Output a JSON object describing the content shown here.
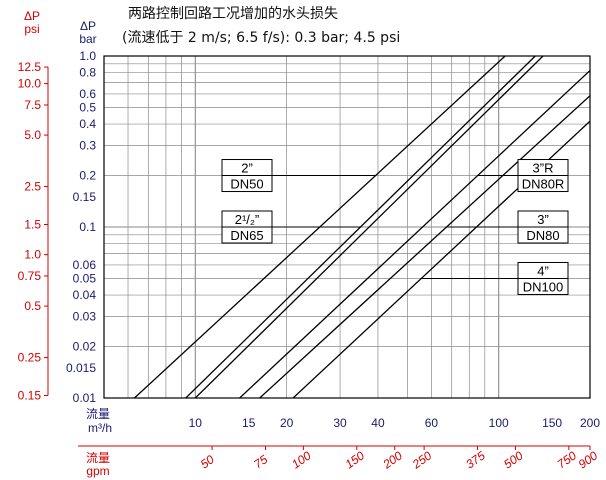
{
  "chart_data": {
    "type": "line",
    "title": "两路控制回路工况增加的水头损失",
    "subtitle": "(流速低于 2 m/s; 6.5 f/s): 0.3 bar; 4.5 psi",
    "x_scale": "log",
    "y_scale": "log",
    "grid": true,
    "xlim": [
      5,
      200
    ],
    "ylim": [
      0.01,
      1.0
    ],
    "x_axis": {
      "label_line1": "流量",
      "label_line2": "m³/h",
      "ticks": [
        10,
        15,
        20,
        30,
        40,
        60,
        100,
        150,
        200
      ],
      "tick_labels": [
        "10",
        "15",
        "20",
        "30",
        "40",
        "60",
        "100",
        "150",
        "200"
      ]
    },
    "y_axis": {
      "unit_symbol": "ΔP",
      "unit": "bar",
      "ticks": [
        0.01,
        0.015,
        0.02,
        0.03,
        0.04,
        0.05,
        0.06,
        0.1,
        0.15,
        0.2,
        0.3,
        0.4,
        0.5,
        0.6,
        0.8,
        1.0
      ],
      "tick_labels": [
        "0.01",
        "0.015",
        "0.02",
        "0.03",
        "0.04",
        "0.05",
        "0.06",
        "0.1",
        "0.15",
        "0.2",
        "0.3",
        "0.4",
        "0.5",
        "0.6",
        "0.8",
        "1.0"
      ]
    },
    "secondary_y_axis": {
      "unit_symbol": "ΔP",
      "unit": "psi",
      "color": "#d40000",
      "ticks": [
        0.15,
        0.25,
        0.5,
        0.75,
        1.0,
        1.5,
        2.5,
        5.0,
        7.5,
        10.0,
        12.5
      ],
      "tick_labels": [
        "0.15",
        "0.25",
        "0.5",
        "0.75",
        "1.0",
        "1.5",
        "2.5",
        "5.0",
        "7.5",
        "10.0",
        "12.5"
      ]
    },
    "secondary_x_axis": {
      "label_line1": "流量",
      "label_line2": "gpm",
      "color": "#d40000",
      "ticks": [
        50,
        75,
        100,
        150,
        200,
        250,
        375,
        500,
        750,
        900
      ],
      "tick_labels": [
        "50",
        "75",
        "100",
        "150",
        "200",
        "250",
        "375",
        "500",
        "750",
        "900"
      ]
    },
    "series": [
      {
        "label_top": "2”",
        "label_bottom": "DN50",
        "label_side": "left",
        "label_y": 0.2,
        "x": [
          6.3,
          105
        ],
        "y": [
          0.01,
          1.0
        ]
      },
      {
        "label_top": "2¹/₂”",
        "label_bottom": "DN65",
        "label_side": "left",
        "label_y": 0.1,
        "x": [
          9.3,
          132
        ],
        "y": [
          0.01,
          1.0
        ]
      },
      {
        "label_top": "",
        "label_bottom": "",
        "x": [
          10.0,
          140
        ],
        "y": [
          0.01,
          1.0
        ]
      },
      {
        "label_top": "3”R",
        "label_bottom": "DN80R",
        "label_side": "right",
        "label_y": 0.2,
        "x": [
          14.0,
          225
        ],
        "y": [
          0.01,
          1.0
        ]
      },
      {
        "label_top": "3”",
        "label_bottom": "DN80",
        "label_side": "right",
        "label_y": 0.1,
        "x": [
          16.3,
          278
        ],
        "y": [
          0.01,
          1.0
        ]
      },
      {
        "label_top": "4”",
        "label_bottom": "DN100",
        "label_side": "right",
        "label_y": 0.05,
        "x": [
          21.0,
          340
        ],
        "y": [
          0.01,
          1.0
        ]
      }
    ],
    "colors": {
      "primary_axis": "#1a1a6e",
      "secondary_axis": "#d40000",
      "lines": "#000000",
      "grid": "#8a8a8a"
    }
  }
}
